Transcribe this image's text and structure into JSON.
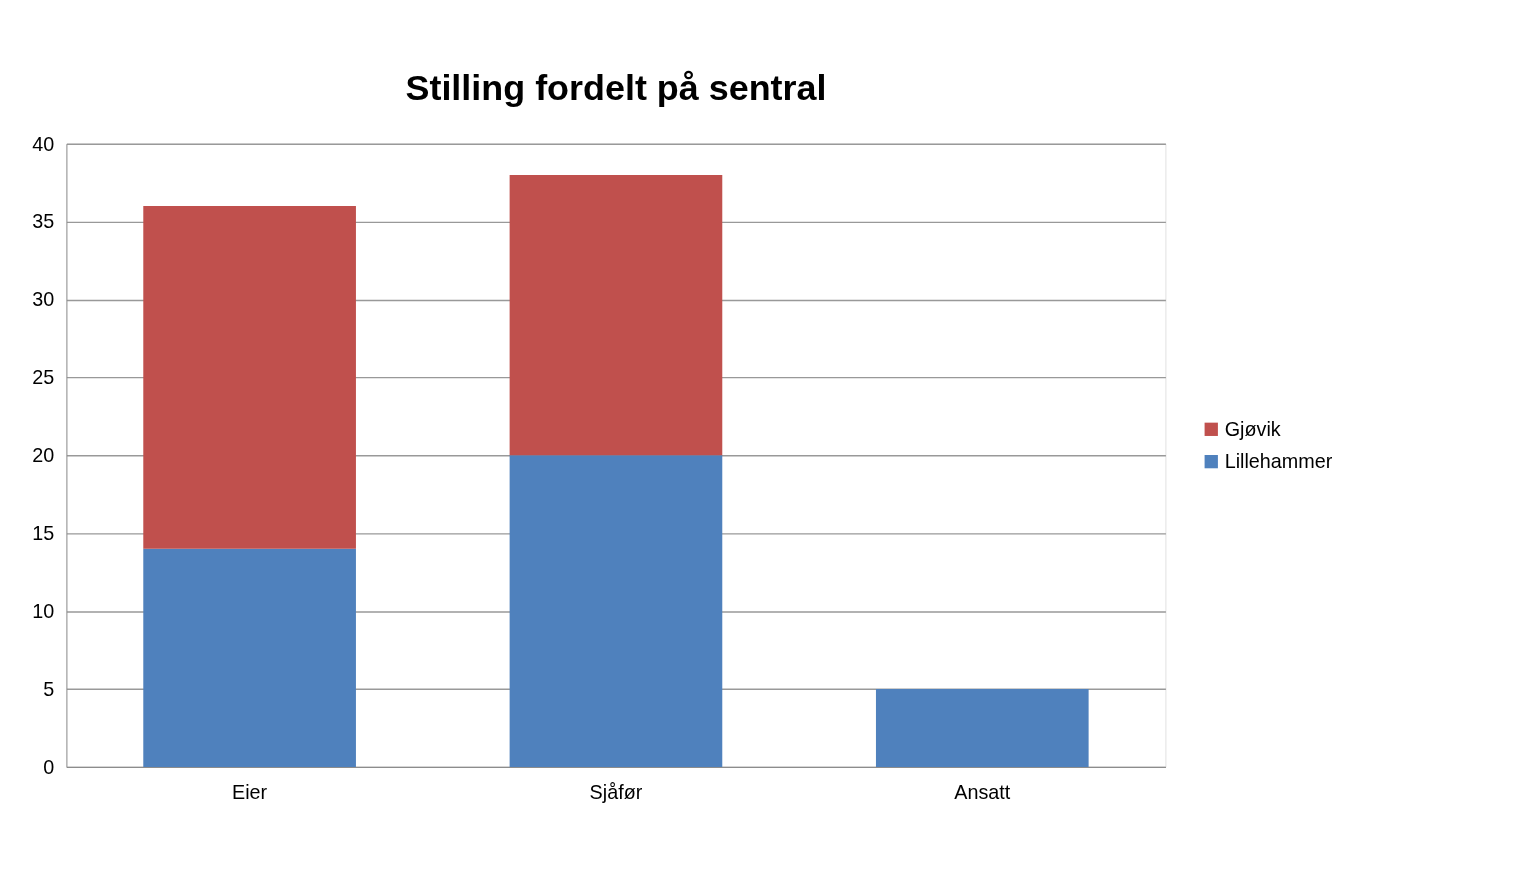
{
  "chart_data": {
    "type": "bar",
    "title": "Stilling fordelt på sentral",
    "stacked": true,
    "categories": [
      "Eier",
      "Sjåfør",
      "Ansatt"
    ],
    "series": [
      {
        "name": "Lillehammer",
        "color": "#4f81bd",
        "values": [
          14,
          20,
          5
        ]
      },
      {
        "name": "Gjøvik",
        "color": "#c0504d",
        "values": [
          22,
          18,
          0
        ]
      }
    ],
    "ylim": [
      0,
      40
    ],
    "yticks": [
      0,
      5,
      10,
      15,
      20,
      25,
      30,
      35,
      40
    ],
    "grid": "y",
    "legend": "right"
  }
}
